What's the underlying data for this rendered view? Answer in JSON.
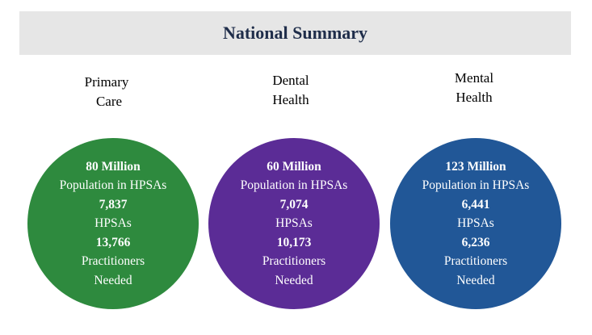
{
  "title": "National Summary",
  "colors": {
    "primary_care": "#2e8a3e",
    "dental": "#5b2c96",
    "mental": "#215797",
    "title_bg": "#e6e6e6"
  },
  "categories": [
    {
      "label_line1": "Primary",
      "label_line2": "Care",
      "population": "80 Million",
      "population_label": "Population in HPSAs",
      "hpsas": "7,837",
      "hpsas_label": "HPSAs",
      "practitioners": "13,766",
      "practitioners_label": "Practitioners",
      "needed_label": "Needed"
    },
    {
      "label_line1": "Dental",
      "label_line2": "Health",
      "population": "60 Million",
      "population_label": "Population in HPSAs",
      "hpsas": "7,074",
      "hpsas_label": "HPSAs",
      "practitioners": "10,173",
      "practitioners_label": "Practitioners",
      "needed_label": "Needed"
    },
    {
      "label_line1": "Mental",
      "label_line2": "Health",
      "population": "123 Million",
      "population_label": "Population in HPSAs",
      "hpsas": "6,441",
      "hpsas_label": "HPSAs",
      "practitioners": "6,236",
      "practitioners_label": "Practitioners",
      "needed_label": "Needed"
    }
  ]
}
